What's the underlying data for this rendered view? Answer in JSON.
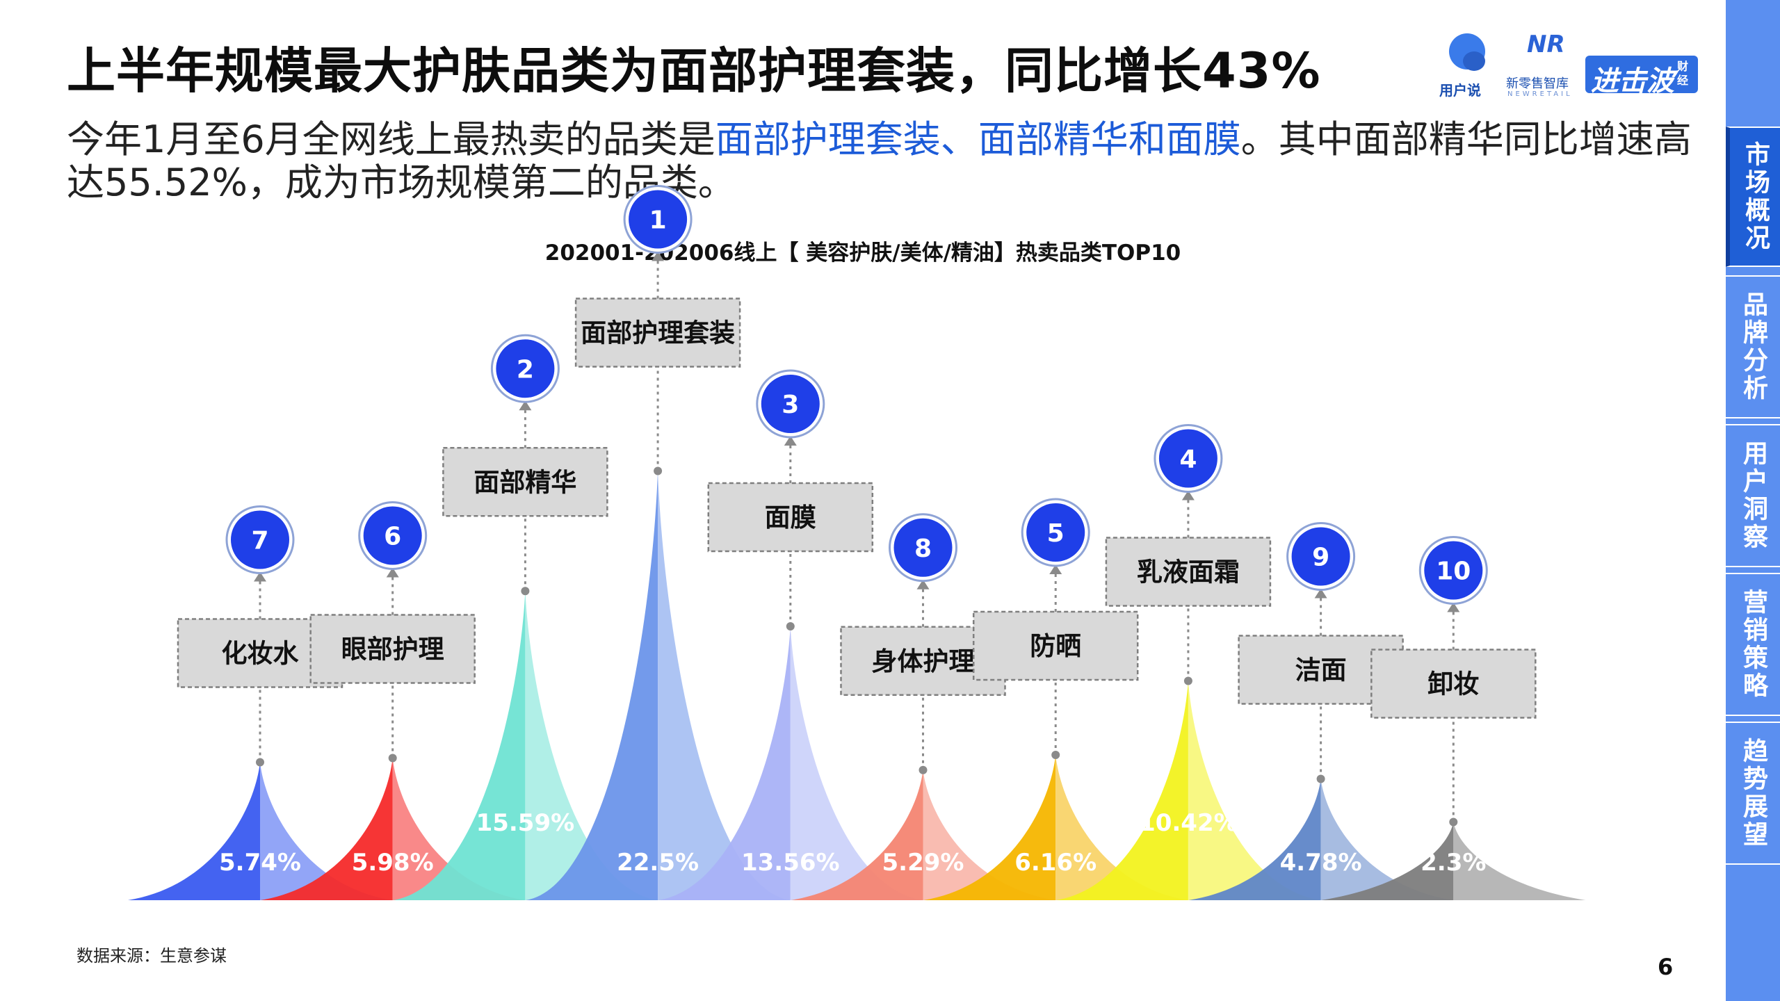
{
  "header": {
    "title": "上半年规模最大护肤品类为面部护理套装，同比增长43%",
    "subtitle_pre": "今年1月至6月全网线上最热卖的品类是",
    "subtitle_highlight": "面部护理套装、面部精华和面膜",
    "subtitle_post": "。其中面部精华同比增速高达55.52%，成为市场规模第二的品类。"
  },
  "logos": {
    "yhs": "用户说",
    "nr_mark": "NR",
    "nr_text": "新零售智库",
    "nr_en": "NEWRETAIL",
    "jf_text": "进击波",
    "jf_small": "财经"
  },
  "sidebar": {
    "items": [
      {
        "label": "市场概况",
        "active": true
      },
      {
        "label": "品牌分析",
        "active": false
      },
      {
        "label": "用户洞察",
        "active": false
      },
      {
        "label": "营销策略",
        "active": false
      },
      {
        "label": "趋势展望",
        "active": false
      }
    ]
  },
  "chart_data": {
    "type": "bar",
    "title": "202001-202006线上【 美容护肤/美体/精油】热卖品类TOP10",
    "categories": [
      "化妆水",
      "眼部护理",
      "面部精华",
      "面部护理套装",
      "面膜",
      "身体护理",
      "防晒",
      "乳液面霜",
      "洁面",
      "卸妆"
    ],
    "ranks": [
      7,
      6,
      2,
      1,
      3,
      8,
      5,
      4,
      9,
      10
    ],
    "values": [
      5.74,
      5.98,
      15.59,
      22.5,
      13.56,
      5.29,
      6.16,
      10.42,
      4.78,
      2.3
    ],
    "value_labels": [
      "5.74%",
      "5.98%",
      "15.59%",
      "22.5%",
      "13.56%",
      "5.29%",
      "6.16%",
      "10.42%",
      "4.78%",
      "2.3%"
    ],
    "colors": [
      "#3a5bf0",
      "#f52a2a",
      "#6fe3d3",
      "#6b95ea",
      "#a9b2f7",
      "#f48572",
      "#f5b600",
      "#f2f21f",
      "#5f86c8",
      "#7d7d7d"
    ]
  },
  "footer": {
    "source": "数据来源：生意参谋",
    "page": "6"
  }
}
